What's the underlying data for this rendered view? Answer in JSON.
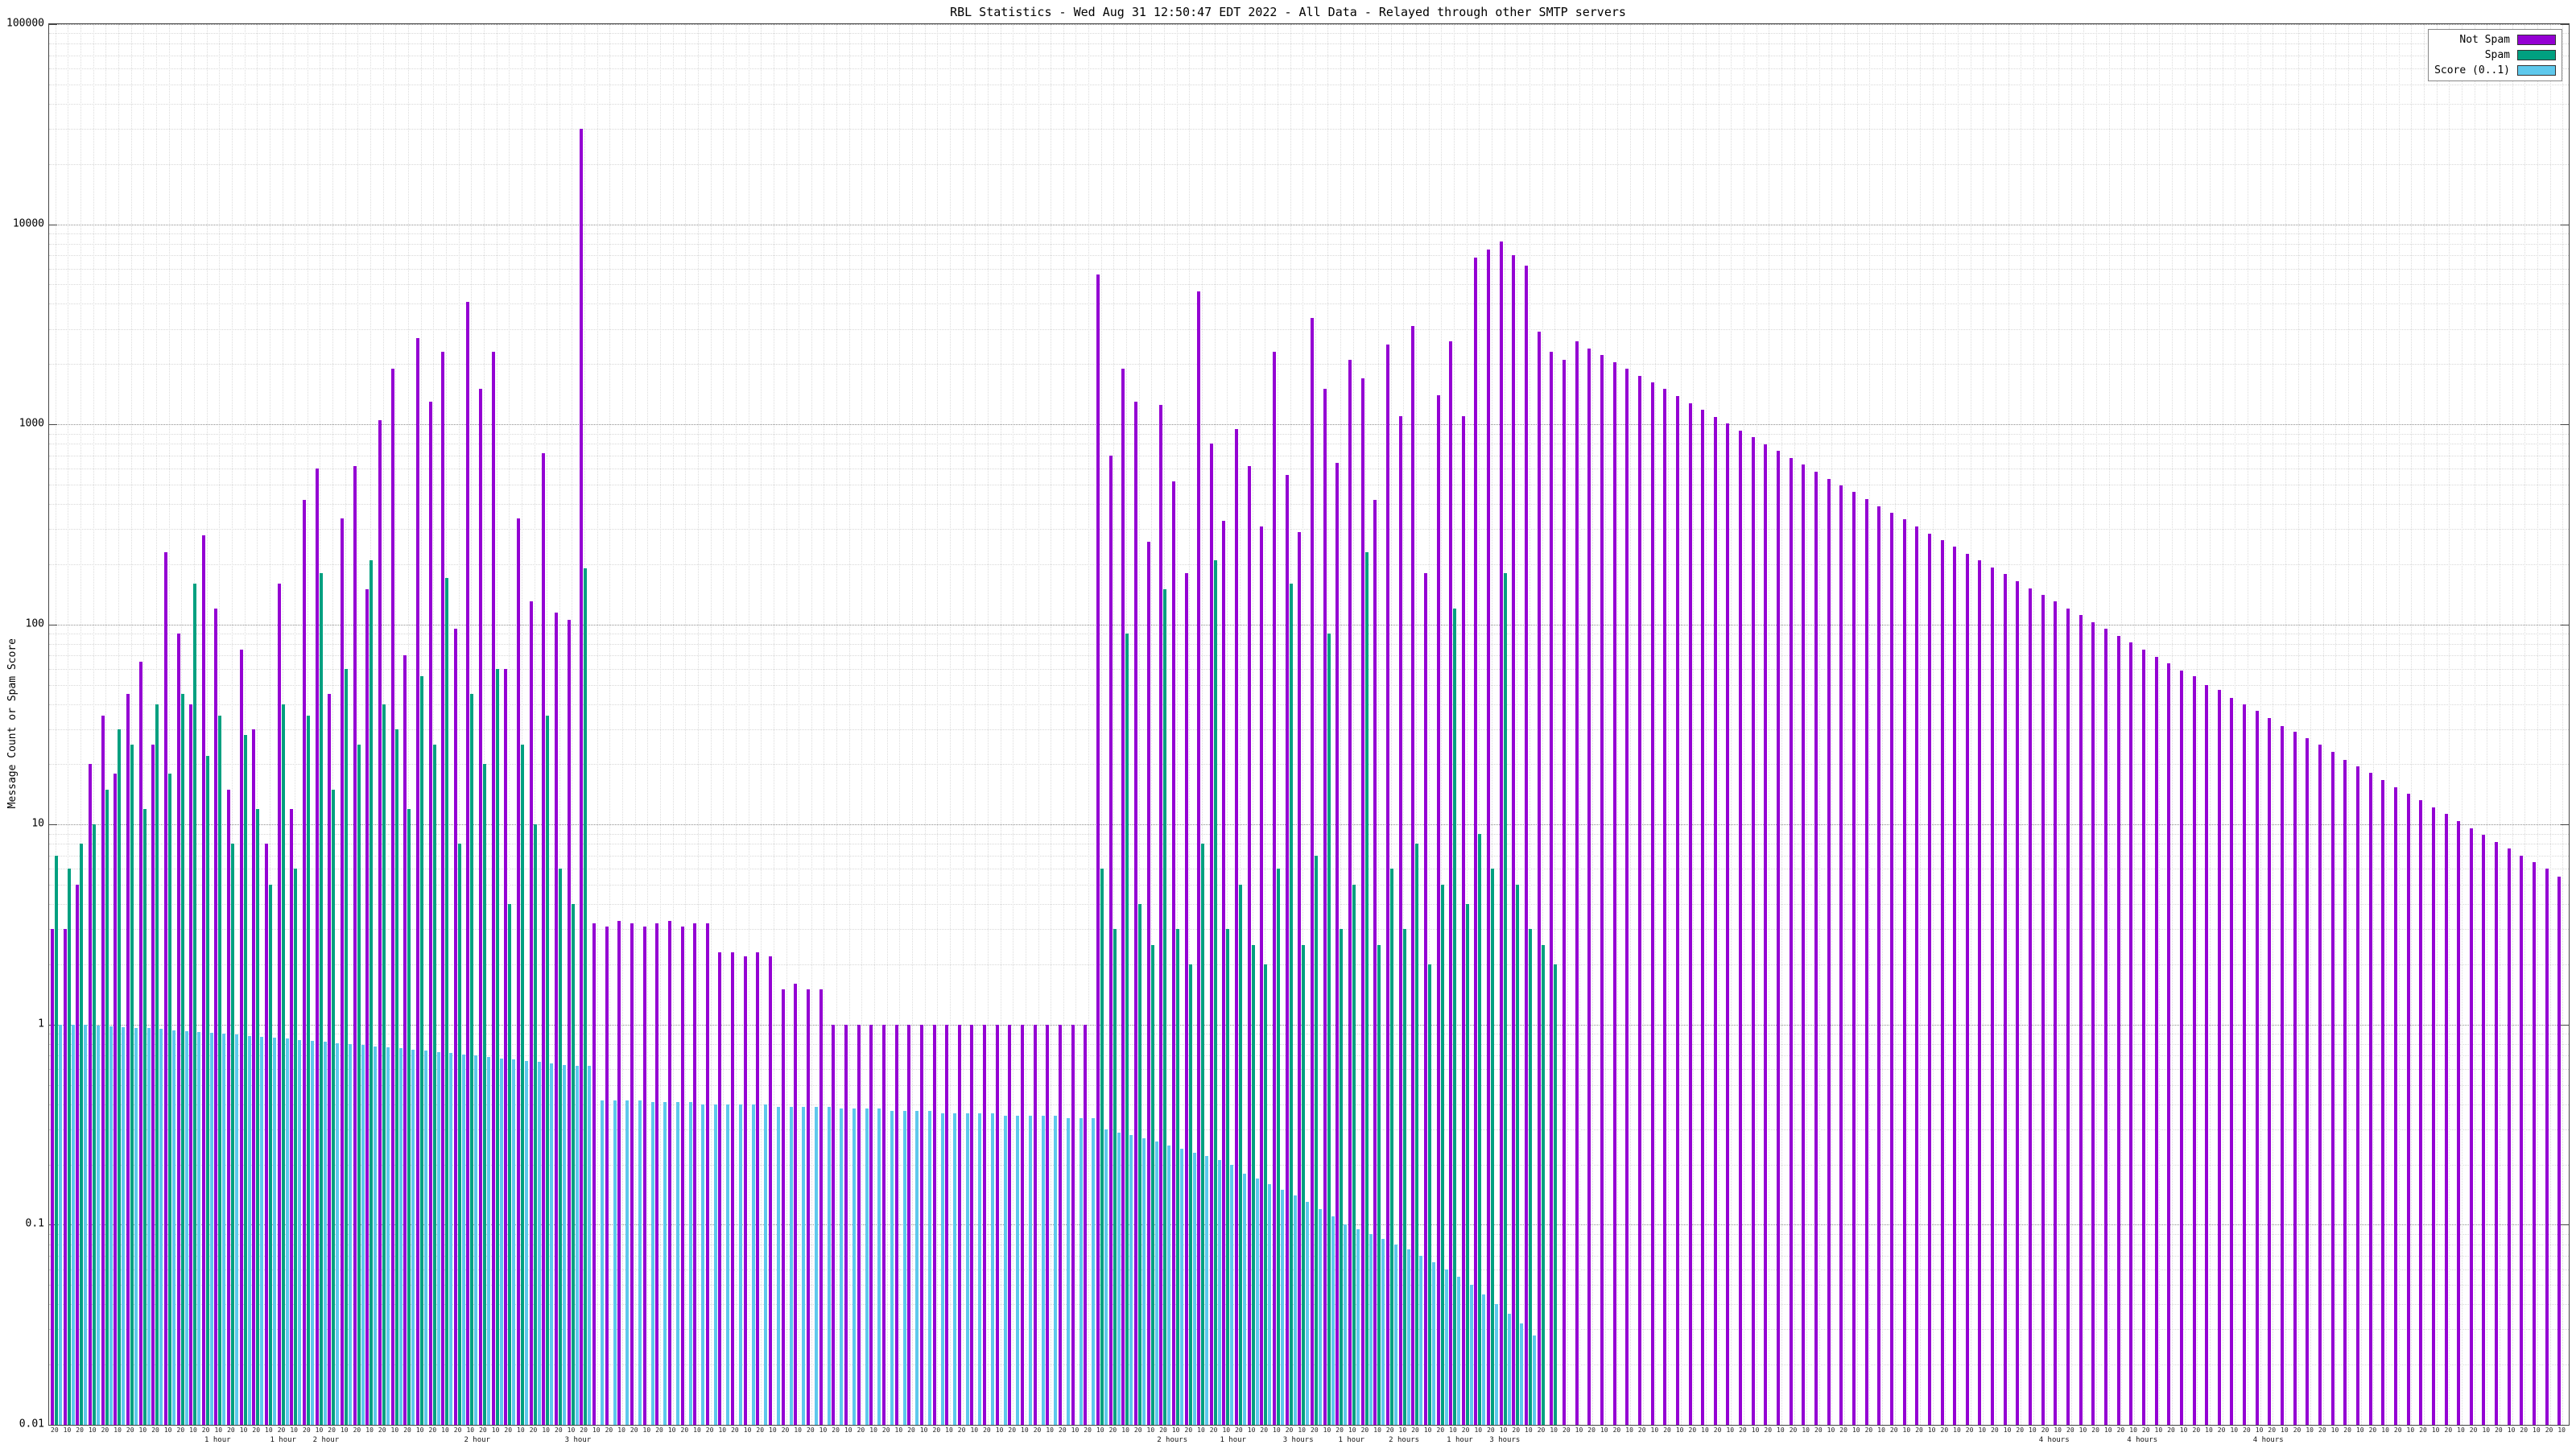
{
  "chart_data": {
    "type": "bar",
    "title": "RBL Statistics - Wed Aug 31 12:50:47 EDT 2022 - All Data - Relayed through other SMTP servers",
    "ylabel": "Message Count or Spam Score",
    "yscale": "log",
    "ylim": [
      0.01,
      100000
    ],
    "yticks": [
      "100000",
      "10000",
      "1000",
      "100",
      "10",
      "1",
      "0.1",
      "0.01"
    ],
    "grid": true,
    "legend_position": "top-right",
    "xtick_pattern": [
      "20",
      "10"
    ],
    "hour_labels": [
      {
        "pos": 0.062,
        "text": "1 hour"
      },
      {
        "pos": 0.088,
        "text": "1 hour"
      },
      {
        "pos": 0.105,
        "text": "2 hour"
      },
      {
        "pos": 0.165,
        "text": "2 hour"
      },
      {
        "pos": 0.205,
        "text": "3 hour"
      },
      {
        "pos": 0.44,
        "text": "2 hours"
      },
      {
        "pos": 0.465,
        "text": "1 hour"
      },
      {
        "pos": 0.49,
        "text": "3 hours"
      },
      {
        "pos": 0.512,
        "text": "1 hour"
      },
      {
        "pos": 0.532,
        "text": "2 hours"
      },
      {
        "pos": 0.555,
        "text": "1 hour"
      },
      {
        "pos": 0.572,
        "text": "3 hours"
      },
      {
        "pos": 0.79,
        "text": "4 hours"
      },
      {
        "pos": 0.825,
        "text": "4 hours"
      },
      {
        "pos": 0.875,
        "text": "4 hours"
      }
    ],
    "series": [
      {
        "name": "Not Spam",
        "color": "#9400d3",
        "values": [
          3,
          3,
          5,
          20,
          35,
          18,
          45,
          65,
          25,
          230,
          90,
          40,
          280,
          120,
          15,
          75,
          30,
          8,
          160,
          12,
          420,
          600,
          45,
          340,
          620,
          150,
          1050,
          1900,
          70,
          2700,
          1300,
          2300,
          95,
          4100,
          1500,
          2300,
          60,
          340,
          130,
          720,
          115,
          105,
          30000,
          3.2,
          3.1,
          3.3,
          3.2,
          3.1,
          3.2,
          3.3,
          3.1,
          3.2,
          3.2,
          2.3,
          2.3,
          2.2,
          2.3,
          2.2,
          1.5,
          1.6,
          1.5,
          1.5,
          1,
          1,
          1,
          1,
          1,
          1,
          1,
          1,
          1,
          1,
          1,
          1,
          1,
          1,
          1,
          1,
          1,
          1,
          1,
          1,
          1,
          5600,
          700,
          1900,
          1300,
          260,
          1250,
          520,
          180,
          4600,
          800,
          330,
          950,
          620,
          310,
          2300,
          560,
          290,
          3400,
          1500,
          640,
          2100,
          1700,
          420,
          2500,
          1100,
          3100,
          180,
          1400,
          2600,
          1100,
          6800,
          7500,
          8200,
          7000,
          6200,
          2900,
          2300,
          2100,
          2600,
          2400,
          2220,
          2050,
          1900,
          1750,
          1620,
          1500,
          1380,
          1280,
          1180,
          1090,
          1010,
          930,
          860,
          795,
          735,
          680,
          630,
          580,
          535,
          495,
          460,
          425,
          390,
          360,
          335,
          310,
          285,
          265,
          245,
          225,
          210,
          193,
          178,
          165,
          152,
          141,
          130,
          120,
          111,
          103,
          95,
          88,
          81,
          75,
          69,
          64,
          59,
          55,
          50,
          47,
          43,
          40,
          37,
          34,
          31,
          29,
          27,
          25,
          23,
          21,
          19.6,
          18.1,
          16.7,
          15.4,
          14.3,
          13.2,
          12.2,
          11.3,
          10.4,
          9.6,
          8.9,
          8.2,
          7.6,
          7.0,
          6.5,
          6.0,
          5.5
        ]
      },
      {
        "name": "Spam",
        "color": "#00a080",
        "values": [
          7,
          6,
          8,
          10,
          15,
          30,
          25,
          12,
          40,
          18,
          45,
          160,
          22,
          35,
          8,
          28,
          12,
          5,
          40,
          6,
          35,
          180,
          15,
          60,
          25,
          210,
          40,
          30,
          12,
          55,
          25,
          170,
          8,
          45,
          20,
          60,
          4,
          25,
          10,
          35,
          6,
          4,
          190,
          null,
          null,
          null,
          null,
          null,
          null,
          null,
          null,
          null,
          null,
          null,
          null,
          null,
          null,
          null,
          null,
          null,
          null,
          null,
          null,
          null,
          null,
          null,
          null,
          null,
          null,
          null,
          null,
          null,
          null,
          null,
          null,
          null,
          null,
          null,
          null,
          null,
          null,
          null,
          null,
          6,
          3,
          90,
          4,
          2.5,
          150,
          3,
          2,
          8,
          210,
          3,
          5,
          2.5,
          2,
          6,
          160,
          2.5,
          7,
          90,
          3,
          5,
          230,
          2.5,
          6,
          3,
          8,
          2,
          5,
          120,
          4,
          9,
          6,
          180,
          5,
          3,
          2.5,
          2,
          null,
          null,
          null,
          null,
          null,
          null,
          null,
          null,
          null,
          null,
          null,
          null,
          null,
          null,
          null,
          null,
          null,
          null,
          null,
          null,
          null,
          null,
          null,
          null,
          null,
          null,
          null,
          null,
          null,
          null,
          null,
          null,
          null,
          null,
          null,
          null,
          null,
          null,
          null,
          null,
          null,
          null,
          null,
          null,
          null,
          null,
          null,
          null,
          null,
          null,
          null,
          null,
          null,
          null,
          null,
          null,
          null,
          null,
          null,
          null,
          null,
          null,
          null,
          null,
          null,
          null,
          null,
          null,
          null,
          null,
          null,
          null,
          null,
          null,
          null,
          null,
          null,
          null,
          null,
          null
        ]
      },
      {
        "name": "Score (0..1)",
        "color": "#5ec8ec",
        "values": [
          1.0,
          1.0,
          1.0,
          0.99,
          0.98,
          0.97,
          0.96,
          0.96,
          0.95,
          0.94,
          0.93,
          0.92,
          0.91,
          0.9,
          0.89,
          0.88,
          0.87,
          0.86,
          0.85,
          0.84,
          0.83,
          0.82,
          0.81,
          0.8,
          0.79,
          0.78,
          0.77,
          0.76,
          0.75,
          0.74,
          0.73,
          0.72,
          0.71,
          0.7,
          0.69,
          0.68,
          0.67,
          0.66,
          0.65,
          0.64,
          0.63,
          0.62,
          0.62,
          0.42,
          0.42,
          0.42,
          0.42,
          0.41,
          0.41,
          0.41,
          0.41,
          0.4,
          0.4,
          0.4,
          0.4,
          0.4,
          0.4,
          0.39,
          0.39,
          0.39,
          0.39,
          0.39,
          0.38,
          0.38,
          0.38,
          0.38,
          0.37,
          0.37,
          0.37,
          0.37,
          0.36,
          0.36,
          0.36,
          0.36,
          0.36,
          0.35,
          0.35,
          0.35,
          0.35,
          0.35,
          0.34,
          0.34,
          0.34,
          0.3,
          0.29,
          0.28,
          0.27,
          0.26,
          0.25,
          0.24,
          0.23,
          0.22,
          0.21,
          0.2,
          0.18,
          0.17,
          0.16,
          0.15,
          0.14,
          0.13,
          0.12,
          0.11,
          0.1,
          0.095,
          0.09,
          0.085,
          0.08,
          0.075,
          0.07,
          0.065,
          0.06,
          0.055,
          0.05,
          0.045,
          0.04,
          0.036,
          0.032,
          0.028,
          null,
          null,
          null,
          null,
          null,
          null,
          null,
          null,
          null,
          null,
          null,
          null,
          null,
          null,
          null,
          null,
          null,
          null,
          null,
          null,
          null,
          null,
          null,
          null,
          null,
          null,
          null,
          null,
          null,
          null,
          null,
          null,
          null,
          null,
          null,
          null,
          null,
          null,
          null,
          null,
          null,
          null,
          null,
          null,
          null,
          null,
          null,
          null,
          null,
          null,
          null,
          null,
          null,
          null,
          null,
          null,
          null,
          null,
          null,
          null,
          null,
          null,
          null,
          null,
          null,
          null,
          null,
          null,
          null,
          null,
          null,
          null,
          null,
          null,
          null,
          null,
          null,
          null,
          null,
          null,
          null,
          null
        ]
      }
    ]
  }
}
